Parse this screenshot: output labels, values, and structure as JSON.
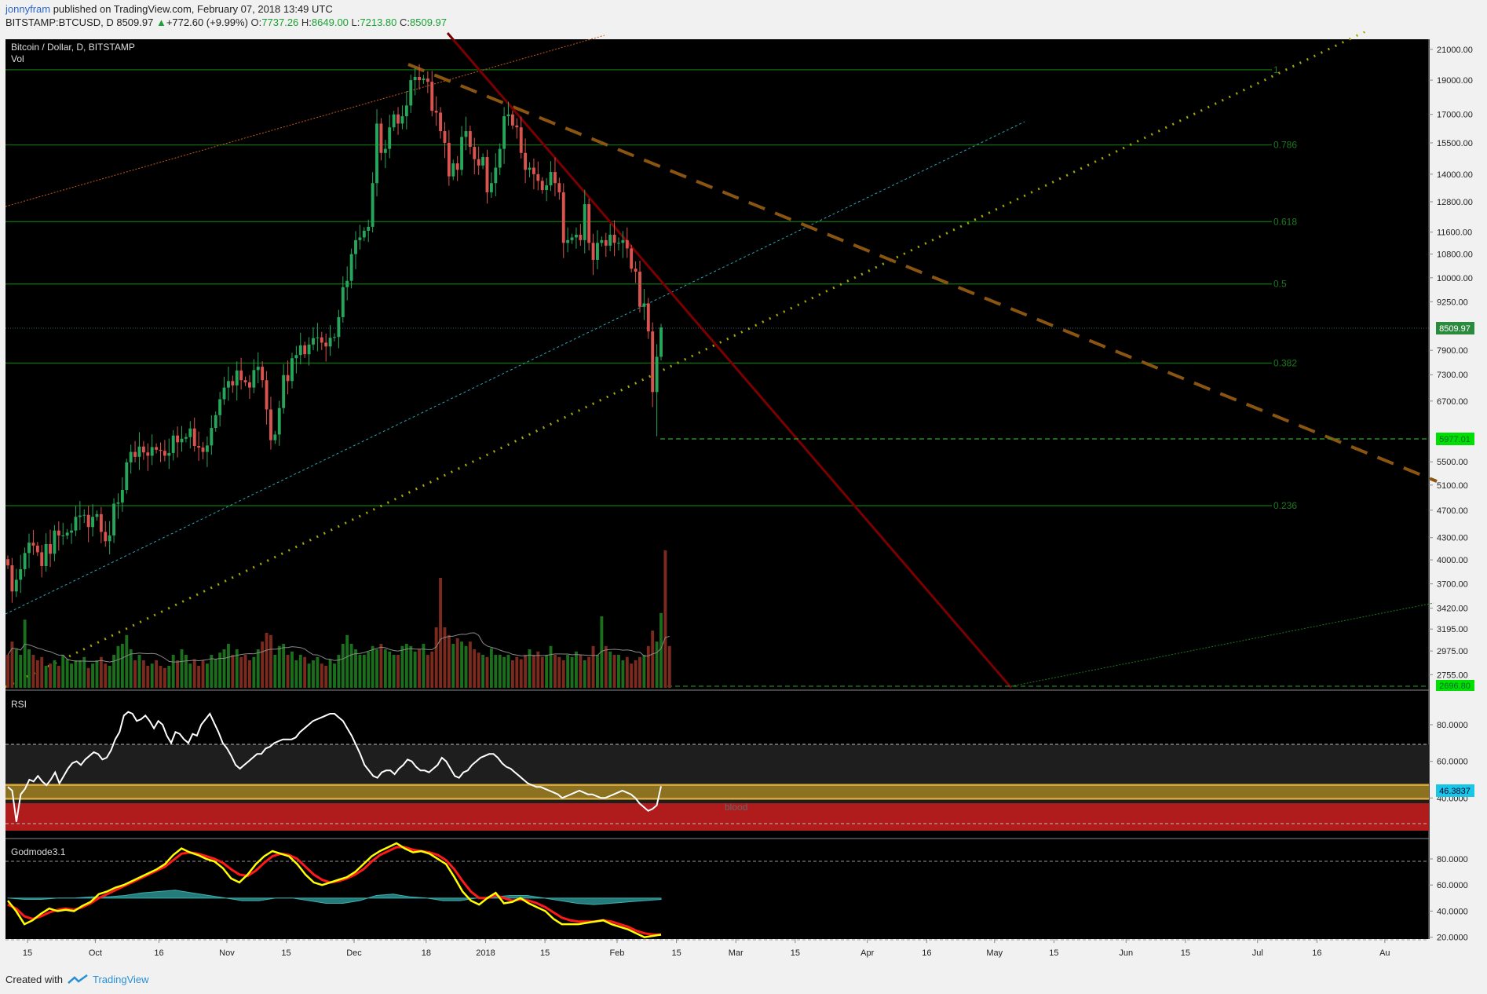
{
  "header": {
    "author": "jonnyfram",
    "published_text": "published on TradingView.com, February 07, 2018 13:49 UTC",
    "symbol": "BITSTAMP:BTCUSD, D",
    "last": "8509.97",
    "change": "+772.60 (+9.99%)",
    "o_label": "O:",
    "o_value": "7737.26",
    "h_label": "H:",
    "h_value": "8649.00",
    "l_label": "L:",
    "l_value": "7213.80",
    "c_label": "C:",
    "c_value": "8509.97"
  },
  "main": {
    "title": "Bitcoin / Dollar, D, BITSTAMP",
    "vol_label": "Vol"
  },
  "footer": {
    "created_with": "Created with",
    "brand": "TradingView"
  },
  "colors": {
    "background": "#000000",
    "bull": "#26a65b",
    "bear": "#d9534f",
    "fib_line": "#0c6b0c",
    "fib_label": "#1e7a1e",
    "price_tag_bg": "#2b8a3e",
    "support_tag_bg": "#00e000",
    "rsi_line": "#ffffff",
    "rsi_tag_bg": "#18c6e6",
    "godmode_yellow": "#ffff00",
    "godmode_red": "#ff1a1a",
    "godmode_teal": "#2b8f8f"
  },
  "chart_data": [
    {
      "type": "candlestick",
      "title": "Bitcoin / Dollar, D, BITSTAMP",
      "xlabel": "",
      "ylabel": "",
      "scale": "log",
      "ylim": [
        2640,
        21700
      ],
      "x_ticks": [
        "15",
        "Oct",
        "16",
        "Nov",
        "15",
        "Dec",
        "18",
        "2018",
        "15",
        "Feb",
        "15",
        "Mar",
        "15",
        "Apr",
        "16",
        "May",
        "15",
        "Jun",
        "15",
        "Jul",
        "16",
        "Au"
      ],
      "y_ticks": [
        "21000.00",
        "19000.00",
        "17000.00",
        "15500.00",
        "14000.00",
        "12800.00",
        "11600.00",
        "10800.00",
        "10000.00",
        "9250.00",
        "7900.00",
        "7300.00",
        "6700.00",
        "5500.00",
        "5100.00",
        "4700.00",
        "4300.00",
        "4000.00",
        "3700.00",
        "3420.00",
        "3195.00",
        "2975.00",
        "2755.00"
      ],
      "last_price": "8509.97",
      "support_price": "5977.01",
      "bottom_price": "2696.80",
      "closes": [
        3930,
        3610,
        3750,
        3880,
        4090,
        4230,
        4190,
        4100,
        3920,
        4210,
        4080,
        4400,
        4330,
        4330,
        4370,
        4400,
        4600,
        4620,
        4630,
        4450,
        4600,
        4640,
        4380,
        4250,
        4330,
        4800,
        4820,
        5020,
        5490,
        5680,
        5590,
        5780,
        5670,
        5610,
        5770,
        5720,
        5700,
        5610,
        5660,
        5990,
        5860,
        5930,
        5960,
        6130,
        5790,
        5760,
        5680,
        5800,
        6140,
        6400,
        6740,
        7000,
        7150,
        7050,
        7400,
        7170,
        7120,
        7000,
        7410,
        7490,
        7170,
        6520,
        5900,
        6010,
        6550,
        7290,
        7150,
        7700,
        7780,
        8030,
        7800,
        8050,
        8220,
        8240,
        8100,
        8000,
        8230,
        8250,
        8800,
        9700,
        9900,
        10800,
        11300,
        11400,
        11650,
        11800,
        13600,
        16500,
        15000,
        15200,
        16300,
        17000,
        16500,
        16900,
        17500,
        19000,
        19200,
        19000,
        19100,
        18900,
        17200,
        17100,
        16100,
        15500,
        13900,
        14500,
        14200,
        15800,
        16100,
        15300,
        14700,
        14400,
        14800,
        13200,
        13600,
        14300,
        15200,
        16900,
        17000,
        16400,
        16300,
        15000,
        14200,
        14300,
        14000,
        13700,
        13300,
        13500,
        14100,
        13600,
        13200,
        11200,
        11300,
        11400,
        11500,
        11300,
        12700,
        11200,
        10600,
        11200,
        11300,
        11100,
        11500,
        11200,
        11200,
        11300,
        11000,
        10300,
        10200,
        9100,
        9200,
        8400,
        6900,
        7737,
        8509.97
      ],
      "volume_relative": [
        0.3,
        0.42,
        0.35,
        0.3,
        0.62,
        0.35,
        0.3,
        0.25,
        0.28,
        0.2,
        0.22,
        0.25,
        0.2,
        0.3,
        0.26,
        0.22,
        0.25,
        0.25,
        0.28,
        0.18,
        0.22,
        0.25,
        0.28,
        0.22,
        0.2,
        0.3,
        0.38,
        0.4,
        0.48,
        0.35,
        0.25,
        0.3,
        0.25,
        0.2,
        0.22,
        0.25,
        0.2,
        0.18,
        0.2,
        0.3,
        0.25,
        0.35,
        0.3,
        0.22,
        0.26,
        0.2,
        0.25,
        0.22,
        0.3,
        0.26,
        0.32,
        0.35,
        0.4,
        0.3,
        0.35,
        0.28,
        0.3,
        0.25,
        0.28,
        0.35,
        0.42,
        0.5,
        0.48,
        0.3,
        0.38,
        0.4,
        0.3,
        0.33,
        0.25,
        0.3,
        0.28,
        0.22,
        0.25,
        0.28,
        0.22,
        0.2,
        0.26,
        0.22,
        0.3,
        0.4,
        0.48,
        0.4,
        0.35,
        0.3,
        0.3,
        0.33,
        0.38,
        0.35,
        0.4,
        0.35,
        0.33,
        0.3,
        0.3,
        0.38,
        0.4,
        0.38,
        0.33,
        0.35,
        0.4,
        0.3,
        0.33,
        0.55,
        1.0,
        0.55,
        0.48,
        0.4,
        0.45,
        0.42,
        0.38,
        0.42,
        0.35,
        0.32,
        0.3,
        0.28,
        0.36,
        0.3,
        0.3,
        0.28,
        0.3,
        0.25,
        0.28,
        0.26,
        0.3,
        0.35,
        0.3,
        0.33,
        0.28,
        0.3,
        0.38,
        0.3,
        0.28,
        0.25,
        0.3,
        0.28,
        0.33,
        0.3,
        0.25,
        0.28,
        0.38,
        0.3,
        0.65,
        0.38,
        0.33,
        0.3,
        0.3,
        0.25,
        0.28,
        0.22,
        0.25,
        0.28,
        0.3,
        0.38,
        0.52,
        0.42,
        0.68,
        1.25,
        0.38
      ],
      "fibonacci": [
        {
          "level": "1",
          "price": 19650
        },
        {
          "level": "0.786",
          "price": 15400
        },
        {
          "level": "0.618",
          "price": 12000
        },
        {
          "level": "0.5",
          "price": 9800
        },
        {
          "level": "0.382",
          "price": 7580
        },
        {
          "level": "0.236",
          "price": 4770
        }
      ]
    },
    {
      "type": "line",
      "title": "RSI",
      "ylim": [
        20,
        95
      ],
      "y_ticks": [
        "80.0000",
        "60.0000",
        "40.0000"
      ],
      "last_value": "46.3837",
      "band_label": "blood",
      "series": [
        {
          "values": [
            46,
            44,
            27,
            42,
            45,
            50,
            49,
            52,
            49,
            47,
            50,
            54,
            48,
            52,
            56,
            59,
            60,
            58,
            61,
            63,
            65,
            64,
            61,
            62,
            66,
            72,
            76,
            85,
            87,
            86,
            82,
            83,
            85,
            82,
            78,
            82,
            80,
            74,
            70,
            76,
            75,
            72,
            70,
            75,
            74,
            80,
            83,
            86,
            81,
            76,
            70,
            67,
            63,
            58,
            56,
            58,
            60,
            62,
            64,
            64,
            67,
            68,
            70,
            71,
            72,
            72,
            72,
            73,
            76,
            78,
            80,
            82,
            83,
            84,
            85,
            86,
            86,
            84,
            82,
            78,
            74,
            69,
            64,
            58,
            55,
            52,
            51,
            54,
            55,
            55,
            53,
            56,
            58,
            61,
            60,
            57,
            55,
            55,
            54,
            56,
            58,
            62,
            60,
            56,
            52,
            51,
            54,
            55,
            58,
            60,
            62,
            63,
            64,
            64,
            62,
            59,
            57,
            56,
            54,
            52,
            50,
            48,
            47,
            46,
            46,
            45,
            44,
            43,
            42,
            40,
            41,
            42,
            43,
            44,
            43,
            42,
            42,
            41,
            40,
            40,
            41,
            42,
            43,
            44,
            43,
            42,
            40,
            37,
            35,
            33,
            34,
            36,
            46.38
          ]
        }
      ]
    },
    {
      "type": "line",
      "title": "Godmode3.1",
      "ylim": [
        15,
        95
      ],
      "y_ticks": [
        "80.0000",
        "60.0000",
        "40.0000",
        "20.0000"
      ],
      "series": [
        {
          "values": [
            48,
            40,
            30,
            33,
            38,
            42,
            40,
            41,
            40,
            44,
            47,
            53,
            55,
            58,
            60,
            63,
            66,
            69,
            72,
            76,
            83,
            88,
            85,
            83,
            80,
            78,
            73,
            65,
            62,
            68,
            76,
            82,
            86,
            84,
            82,
            76,
            68,
            62,
            60,
            62,
            64,
            66,
            70,
            76,
            82,
            86,
            89,
            92,
            88,
            85,
            86,
            84,
            80,
            76,
            66,
            55,
            48,
            45,
            50,
            54,
            46,
            47,
            50,
            46,
            43,
            40,
            34,
            30,
            30,
            30,
            31,
            32,
            33,
            30,
            28,
            26,
            23,
            20,
            21,
            22
          ]
        },
        {
          "values": [
            45,
            42,
            36,
            34,
            36,
            39,
            41,
            42,
            41,
            43,
            46,
            50,
            53,
            56,
            59,
            62,
            65,
            68,
            71,
            74,
            79,
            84,
            85,
            84,
            82,
            80,
            77,
            72,
            68,
            67,
            71,
            77,
            82,
            84,
            83,
            80,
            74,
            68,
            64,
            62,
            63,
            65,
            68,
            72,
            78,
            83,
            86,
            89,
            89,
            87,
            86,
            85,
            83,
            79,
            72,
            63,
            55,
            50,
            50,
            52,
            50,
            48,
            49,
            48,
            46,
            43,
            39,
            35,
            33,
            32,
            32,
            32,
            33,
            32,
            30,
            28,
            25,
            23,
            22,
            22
          ]
        },
        {
          "values": [
            50,
            49,
            49,
            50,
            50,
            51,
            51,
            52,
            54,
            55,
            56,
            54,
            52,
            50,
            48,
            48,
            50,
            50,
            48,
            46,
            46,
            48,
            52,
            53,
            51,
            50,
            48,
            48,
            50,
            51,
            52,
            52,
            50,
            48,
            46,
            45,
            46,
            47,
            48,
            49
          ]
        }
      ]
    }
  ]
}
